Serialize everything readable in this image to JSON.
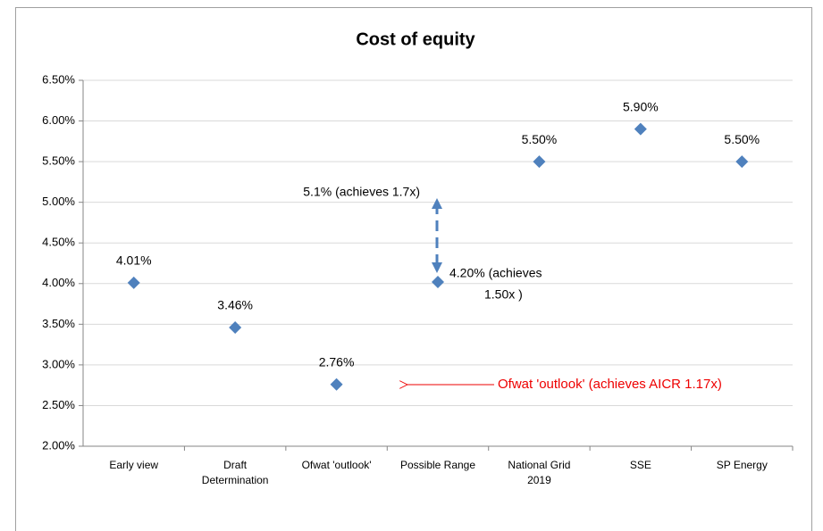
{
  "chart_data": {
    "type": "scatter",
    "title": "Cost of equity",
    "categories": [
      [
        "Early view"
      ],
      [
        "Draft",
        "Determination"
      ],
      [
        "Ofwat 'outlook'"
      ],
      [
        "Possible Range"
      ],
      [
        "National Grid",
        "2019"
      ],
      [
        "SSE"
      ],
      [
        "SP Energy"
      ]
    ],
    "values": [
      4.01,
      3.46,
      2.76,
      4.02,
      5.5,
      5.9,
      5.5
    ],
    "value_labels": [
      "4.01%",
      "3.46%",
      "2.76%",
      null,
      "5.50%",
      "5.90%",
      "5.50%"
    ],
    "color": "#4f81bd",
    "ylim": [
      2.0,
      6.5
    ],
    "yticks": [
      {
        "value": 2.0,
        "label": "2.00%"
      },
      {
        "value": 2.5,
        "label": "2.50%"
      },
      {
        "value": 3.0,
        "label": "3.00%"
      },
      {
        "value": 3.5,
        "label": "3.50%"
      },
      {
        "value": 4.0,
        "label": "4.00%"
      },
      {
        "value": 4.5,
        "label": "4.50%"
      },
      {
        "value": 5.0,
        "label": "5.00%"
      },
      {
        "value": 5.5,
        "label": "5.50%"
      },
      {
        "value": 6.0,
        "label": "6.00%"
      },
      {
        "value": 6.5,
        "label": "6.50%"
      }
    ],
    "grid": true,
    "annotations": [
      "5.1% (achieves 1.7x)",
      [
        "4.20% (achieves",
        "1.50x )"
      ],
      "Ofwat 'outlook' (achieves AICR 1.17x)"
    ]
  }
}
